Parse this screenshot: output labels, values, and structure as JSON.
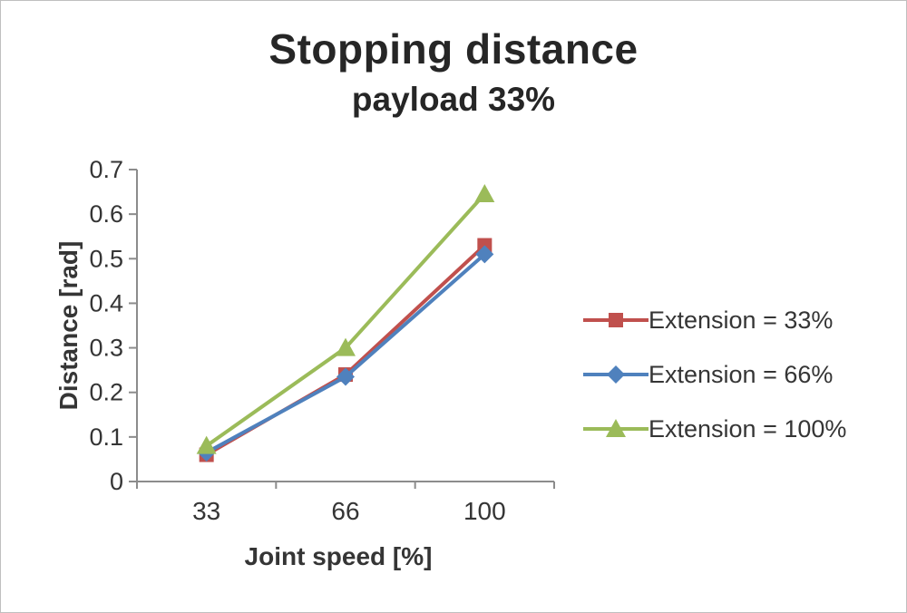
{
  "chart": {
    "title": "Stopping distance",
    "subtitle": "payload 33%"
  },
  "chart_data": {
    "type": "line",
    "title": "Stopping distance",
    "subtitle": "payload 33%",
    "categories": [
      "33",
      "66",
      "100"
    ],
    "series": [
      {
        "name": "Extension = 33%",
        "values": [
          0.06,
          0.24,
          0.53
        ],
        "color": "#c0504d",
        "marker": "square"
      },
      {
        "name": "Extension = 66%",
        "values": [
          0.065,
          0.235,
          0.51
        ],
        "color": "#4f81bd",
        "marker": "diamond"
      },
      {
        "name": "Extension = 100%",
        "values": [
          0.08,
          0.3,
          0.645
        ],
        "color": "#9bbb59",
        "marker": "triangle"
      }
    ],
    "xlabel": "Joint speed [%]",
    "ylabel": "Distance [rad]",
    "ylim": [
      0,
      0.7
    ],
    "ytick_step": 0.1,
    "grid": false,
    "legend_position": "right",
    "axis_color": "#8c8c8c"
  }
}
